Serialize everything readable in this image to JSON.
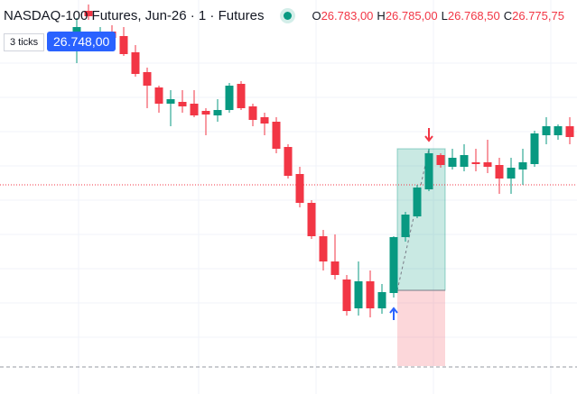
{
  "chart_data": {
    "type": "candlestick",
    "title": "NASDAQ-100 Futures, Jun-26 · 1 · Futures",
    "ohlc_legend": [
      {
        "key": "O",
        "value": "26.783,00"
      },
      {
        "key": "H",
        "value": "26.785,00"
      },
      {
        "key": "L",
        "value": "26.768,50"
      },
      {
        "key": "C",
        "value": "26.775,75"
      }
    ],
    "measure_label": "3 ticks",
    "price_label": "26.748,00",
    "up_color": "#089981",
    "down_color": "#f23645",
    "ylim": [
      26700.75,
      26810
    ],
    "price_line": 26758.75,
    "session_line": 26708.25,
    "position": {
      "entry": 26729.5,
      "target": 26768.75,
      "stop": 26708.5
    },
    "open": [
      26796.25,
      26807,
      26798.75,
      26801.25,
      26800,
      26795.5,
      26790,
      26785.75,
      26781.25,
      26781.75,
      26781.25,
      26779.25,
      26778,
      26779.5,
      26786.75,
      26780.5,
      26777.5,
      26776.25,
      26769.25,
      26761.75,
      26753.75,
      26744.5,
      26737.5,
      26732.5,
      26724.5,
      26732,
      26724.5,
      26728.75,
      26744.25,
      26750,
      26757.5,
      26767,
      26763.75,
      26763.75,
      26765,
      26765,
      26764.25,
      26760.5,
      26763,
      26764.5,
      26772.5,
      26772.5,
      26775
    ],
    "high": [
      26805,
      26808.75,
      26802.5,
      26803,
      26802.5,
      26797.5,
      26791.25,
      26786.25,
      26785,
      26785,
      26785,
      26780,
      26782.5,
      26787,
      26787.5,
      26781.25,
      26778.75,
      26777.5,
      26770,
      26763.75,
      26754.5,
      26746.25,
      26745,
      26733.75,
      26737.5,
      26735,
      26731.25,
      26744.5,
      26751.25,
      26758.75,
      26768.75,
      26767.5,
      26768.75,
      26770,
      26768.75,
      26771.25,
      26766.25,
      26766.25,
      26768.75,
      26773.75,
      26777.5,
      26775.5,
      26777.5
    ],
    "low": [
      26792.5,
      26804.5,
      26797.5,
      26798.25,
      26794.5,
      26788.75,
      26780,
      26778.75,
      26775,
      26778.75,
      26777.5,
      26772.5,
      26776.25,
      26778.75,
      26779.5,
      26775,
      26772.5,
      26767.5,
      26760.5,
      26752.5,
      26743.75,
      26735,
      26732.5,
      26722.5,
      26722.5,
      26722,
      26723,
      26727.5,
      26743,
      26749.5,
      26757,
      26763.5,
      26763,
      26762.5,
      26762.5,
      26762,
      26756.25,
      26756.25,
      26758.75,
      26763.75,
      26770,
      26771.25,
      26770
    ],
    "close": [
      26802.5,
      26805.5,
      26801.25,
      26799.5,
      26795,
      26789.5,
      26786.25,
      26781.25,
      26782.5,
      26780.5,
      26778,
      26778.25,
      26779.5,
      26786.25,
      26780,
      26776.75,
      26775.75,
      26768.75,
      26761.25,
      26753.75,
      26744.5,
      26737.5,
      26733.75,
      26723.75,
      26732,
      26724.5,
      26729,
      26744.25,
      26750.5,
      26758,
      26767.5,
      26764.25,
      26766.25,
      26767,
      26764.5,
      26763.75,
      26760.5,
      26763.5,
      26765,
      26773,
      26775,
      26775,
      26772
    ]
  }
}
